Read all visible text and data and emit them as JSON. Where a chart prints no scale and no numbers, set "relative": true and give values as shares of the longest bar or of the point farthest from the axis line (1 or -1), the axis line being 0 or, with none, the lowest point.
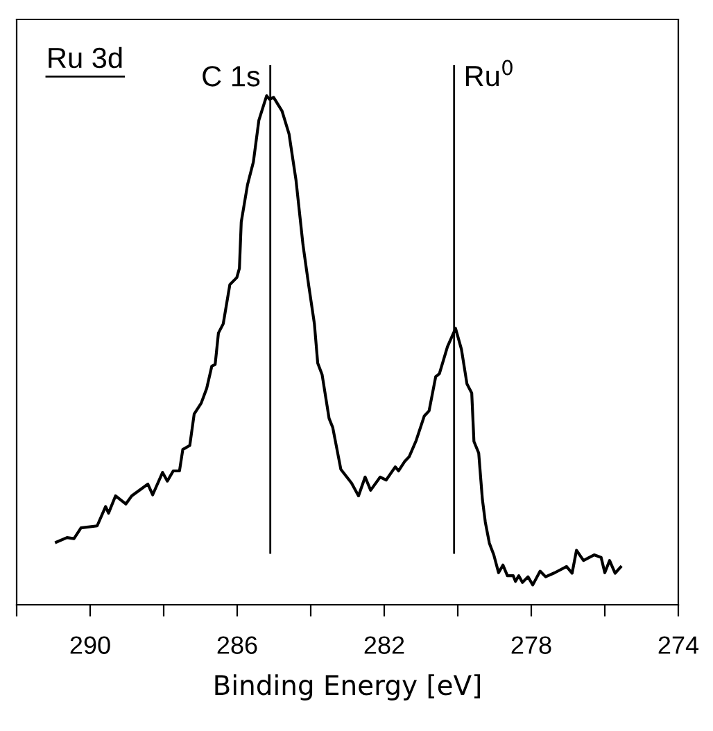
{
  "chart_data": {
    "type": "line",
    "relative": true,
    "xlabel": "Binding Energy [eV]",
    "xlim": [
      292,
      274
    ],
    "xticks": [
      {
        "value": 292,
        "label": null
      },
      290,
      {
        "value": 288,
        "label": null
      },
      286,
      {
        "value": 284,
        "label": null
      },
      282,
      {
        "value": 280,
        "label": null
      },
      278,
      {
        "value": 276,
        "label": null
      },
      274
    ],
    "annotations": [
      "Ru 3d"
    ],
    "ref_lines": [
      {
        "axis": "x",
        "value": 285.1,
        "label": "C 1s",
        "color": "#000000"
      },
      {
        "axis": "x",
        "value": 280.1,
        "label": "Ru$^{0}$",
        "color": "#000000"
      }
    ],
    "grid": false,
    "legend": false,
    "marker": "none",
    "line_style": "solid",
    "series": [
      {
        "color": "#000000",
        "x": [
          290.92,
          290.63,
          290.44,
          290.25,
          289.81,
          289.58,
          289.5,
          289.31,
          289.03,
          288.87,
          288.43,
          288.3,
          288.03,
          287.9,
          287.74,
          287.57,
          287.48,
          287.29,
          287.17,
          286.98,
          286.83,
          286.69,
          286.6,
          286.51,
          286.38,
          286.2,
          286.01,
          285.94,
          285.89,
          285.72,
          285.56,
          285.41,
          285.2,
          285.12,
          285.01,
          284.78,
          284.59,
          284.4,
          284.21,
          284.05,
          283.9,
          283.81,
          283.69,
          283.5,
          283.4,
          283.18,
          282.89,
          282.7,
          282.52,
          282.37,
          282.11,
          281.95,
          281.7,
          281.61,
          281.45,
          281.32,
          281.13,
          280.91,
          280.78,
          280.6,
          280.5,
          280.28,
          280.06,
          279.9,
          279.75,
          279.62,
          279.56,
          279.43,
          279.33,
          279.25,
          279.14,
          279.02,
          278.89,
          278.77,
          278.65,
          278.49,
          278.43,
          278.34,
          278.24,
          278.09,
          277.96,
          277.76,
          277.61,
          277.36,
          277.04,
          276.89,
          276.77,
          276.58,
          276.29,
          276.1,
          276.0,
          275.87,
          275.72,
          275.57
        ],
        "values": [
          0.123,
          0.132,
          0.13,
          0.151,
          0.155,
          0.193,
          0.18,
          0.214,
          0.198,
          0.214,
          0.237,
          0.216,
          0.26,
          0.243,
          0.263,
          0.263,
          0.305,
          0.313,
          0.375,
          0.396,
          0.425,
          0.469,
          0.472,
          0.534,
          0.552,
          0.629,
          0.643,
          0.661,
          0.752,
          0.825,
          0.87,
          0.952,
          1.0,
          0.993,
          0.997,
          0.97,
          0.925,
          0.834,
          0.707,
          0.625,
          0.552,
          0.475,
          0.452,
          0.366,
          0.348,
          0.266,
          0.239,
          0.214,
          0.251,
          0.225,
          0.251,
          0.245,
          0.271,
          0.263,
          0.281,
          0.291,
          0.323,
          0.371,
          0.381,
          0.448,
          0.454,
          0.507,
          0.543,
          0.502,
          0.434,
          0.416,
          0.321,
          0.298,
          0.207,
          0.162,
          0.121,
          0.098,
          0.063,
          0.078,
          0.057,
          0.057,
          0.046,
          0.057,
          0.044,
          0.055,
          0.039,
          0.066,
          0.055,
          0.063,
          0.075,
          0.062,
          0.107,
          0.087,
          0.098,
          0.093,
          0.063,
          0.087,
          0.062,
          0.074
        ]
      }
    ]
  }
}
